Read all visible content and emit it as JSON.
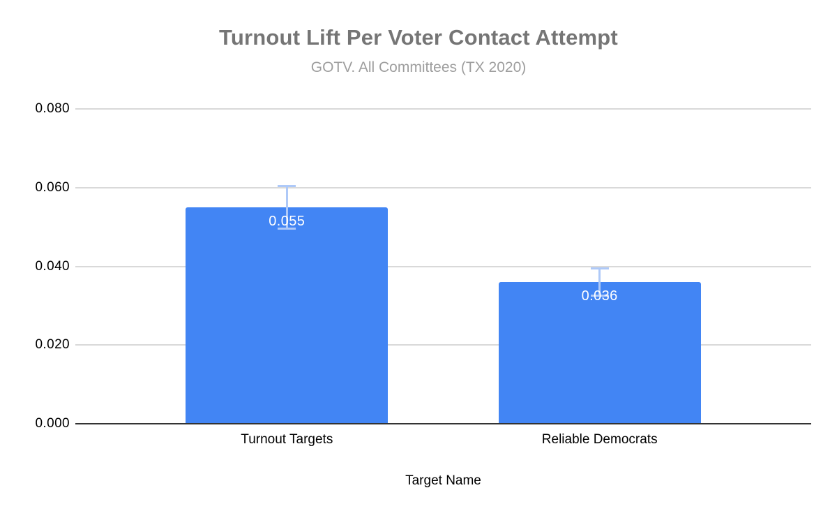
{
  "chart": {
    "title": "Turnout Lift Per Voter Contact Attempt",
    "subtitle": "GOTV. All Committees (TX 2020)"
  },
  "chart_data": {
    "type": "bar",
    "title": "Turnout Lift Per Voter Contact Attempt",
    "subtitle": "GOTV. All Committees (TX 2020)",
    "xlabel": "Target Name",
    "ylabel": "",
    "categories": [
      "Turnout Targets",
      "Reliable Democrats"
    ],
    "values": [
      0.055,
      0.036
    ],
    "value_labels": [
      "0.055",
      "0.036"
    ],
    "error_plus": [
      0.0055,
      0.0035
    ],
    "error_minus": [
      0.0055,
      0.0035
    ],
    "ylim": [
      0,
      0.08
    ],
    "yticks": [
      0,
      0.02,
      0.04,
      0.06,
      0.08
    ],
    "ytick_labels": [
      "0.000",
      "0.020",
      "0.040",
      "0.060",
      "0.080"
    ],
    "grid": true,
    "legend": "none",
    "colors": {
      "bar": "#4285f4",
      "error_bar": "#aec9f8",
      "grid_line": "#d9d9d9",
      "axis_line": "#333333",
      "title_text": "#757575",
      "subtitle_text": "#9e9e9e",
      "tick_text": "#000000",
      "bar_value_text": "#ffffff"
    }
  }
}
